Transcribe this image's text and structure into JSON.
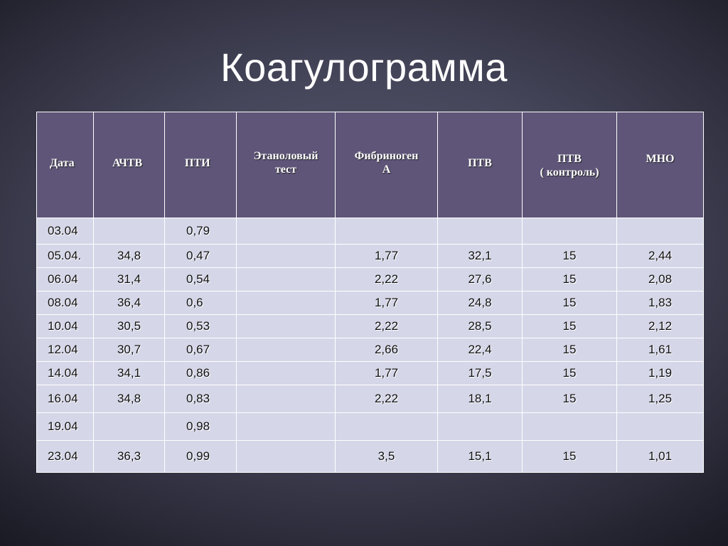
{
  "title": "Коагулограмма",
  "table": {
    "headers": [
      [
        "Дата"
      ],
      [
        "АЧТВ"
      ],
      [
        "ПТИ"
      ],
      [
        "Этаноловый",
        "тест"
      ],
      [
        "Фибриноген",
        "А"
      ],
      [
        "ПТВ"
      ],
      [
        "ПТВ",
        "( контроль)"
      ],
      [
        "МНО"
      ]
    ],
    "rows": [
      [
        "03.04",
        "",
        "0,79",
        "",
        "",
        "",
        "",
        ""
      ],
      [
        "05.04.",
        "34,8",
        "0,47",
        "",
        "1,77",
        "32,1",
        "15",
        "2,44"
      ],
      [
        "06.04",
        "31,4",
        "0,54",
        "",
        "2,22",
        "27,6",
        "15",
        "2,08"
      ],
      [
        "08.04",
        "36,4",
        "0,6",
        "",
        "1,77",
        "24,8",
        "15",
        "1,83"
      ],
      [
        "10.04",
        "30,5",
        "0,53",
        "",
        "2,22",
        "28,5",
        "15",
        "2,12"
      ],
      [
        "12.04",
        "30,7",
        "0,67",
        "",
        "2,66",
        "22,4",
        "15",
        "1,61"
      ],
      [
        "14.04",
        "34,1",
        "0,86",
        "",
        "1,77",
        "17,5",
        "15",
        "1,19"
      ],
      [
        "16.04",
        "34,8",
        "0,83",
        "",
        "2,22",
        "18,1",
        "15",
        "1,25"
      ],
      [
        "19.04",
        "",
        "0,98",
        "",
        "",
        "",
        "",
        ""
      ],
      [
        "23.04",
        "36,3",
        "0,99",
        "",
        "3,5",
        "15,1",
        "15",
        "1,01"
      ]
    ]
  }
}
